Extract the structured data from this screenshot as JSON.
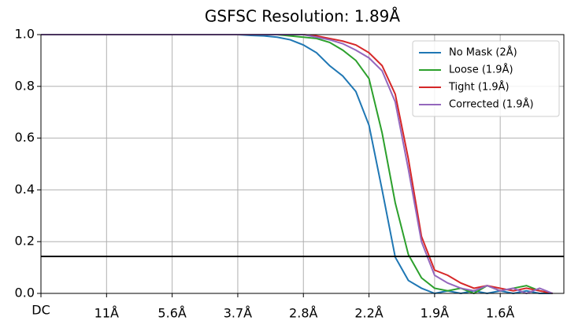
{
  "chart_data": {
    "type": "line",
    "title": "GSFSC Resolution: 1.89Å",
    "x": [
      0,
      0.2,
      0.4,
      0.6,
      0.8,
      1.0,
      1.2,
      1.4,
      1.6,
      1.8,
      2.0,
      2.2,
      2.4,
      2.6,
      2.8,
      3.0,
      3.2,
      3.4,
      3.6,
      3.8,
      4.0,
      4.2,
      4.4,
      4.6,
      4.8,
      5.0,
      5.2,
      5.4,
      5.6,
      5.8,
      6.0,
      6.2,
      6.4,
      6.6,
      6.8,
      7.0,
      7.2,
      7.4,
      7.6,
      7.8
    ],
    "series": [
      {
        "name": "No Mask (2Å)",
        "color": "#1f77b4",
        "values": [
          1,
          1,
          1,
          1,
          1,
          1,
          1,
          1,
          1,
          1,
          1,
          1,
          1,
          1,
          1,
          1,
          0.997,
          0.995,
          0.99,
          0.98,
          0.96,
          0.93,
          0.88,
          0.84,
          0.78,
          0.65,
          0.4,
          0.14,
          0.05,
          0.02,
          0.0,
          0.01,
          0.0,
          0.01,
          0.0,
          0.01,
          0.0,
          0.01,
          0.0,
          0.0
        ]
      },
      {
        "name": "Loose (1.9Å)",
        "color": "#2ca02c",
        "values": [
          1,
          1,
          1,
          1,
          1,
          1,
          1,
          1,
          1,
          1,
          1,
          1,
          1,
          1,
          1,
          1,
          1,
          1,
          1,
          0.995,
          0.99,
          0.985,
          0.97,
          0.94,
          0.9,
          0.83,
          0.62,
          0.35,
          0.15,
          0.06,
          0.02,
          0.01,
          0.02,
          0.0,
          0.03,
          0.01,
          0.02,
          0.03,
          0.01,
          0.0
        ]
      },
      {
        "name": "Tight (1.9Å)",
        "color": "#d62728",
        "values": [
          1,
          1,
          1,
          1,
          1,
          1,
          1,
          1,
          1,
          1,
          1,
          1,
          1,
          1,
          1,
          1,
          1,
          1,
          1,
          1,
          1,
          0.995,
          0.985,
          0.975,
          0.96,
          0.93,
          0.88,
          0.77,
          0.52,
          0.22,
          0.09,
          0.07,
          0.04,
          0.02,
          0.03,
          0.02,
          0.01,
          0.02,
          0.01,
          0.0
        ]
      },
      {
        "name": "Corrected (1.9Å)",
        "color": "#9467bd",
        "values": [
          1,
          1,
          1,
          1,
          1,
          1,
          1,
          1,
          1,
          1,
          1,
          1,
          1,
          1,
          1,
          1,
          1,
          1,
          1,
          1,
          1,
          0.99,
          0.98,
          0.965,
          0.94,
          0.91,
          0.86,
          0.74,
          0.48,
          0.2,
          0.07,
          0.04,
          0.02,
          0.01,
          0.03,
          0.01,
          0.02,
          0.0,
          0.02,
          0.0
        ]
      }
    ],
    "threshold": 0.143,
    "xlim": [
      0,
      7.97
    ],
    "xticks": [
      {
        "value": 0,
        "label": "DC"
      },
      {
        "value": 1,
        "label": "11Å"
      },
      {
        "value": 2,
        "label": "5.6Å"
      },
      {
        "value": 3,
        "label": "3.7Å"
      },
      {
        "value": 4,
        "label": "2.8Å"
      },
      {
        "value": 5,
        "label": "2.2Å"
      },
      {
        "value": 6,
        "label": "1.9Å"
      },
      {
        "value": 7,
        "label": "1.6Å"
      }
    ],
    "ylim": [
      0,
      1
    ],
    "yticks": [
      {
        "value": 0,
        "label": "0.0"
      },
      0.2,
      0.4,
      0.6,
      0.8,
      {
        "value": 1,
        "label": "1.0"
      }
    ],
    "grid": true,
    "legend": "upper right"
  }
}
